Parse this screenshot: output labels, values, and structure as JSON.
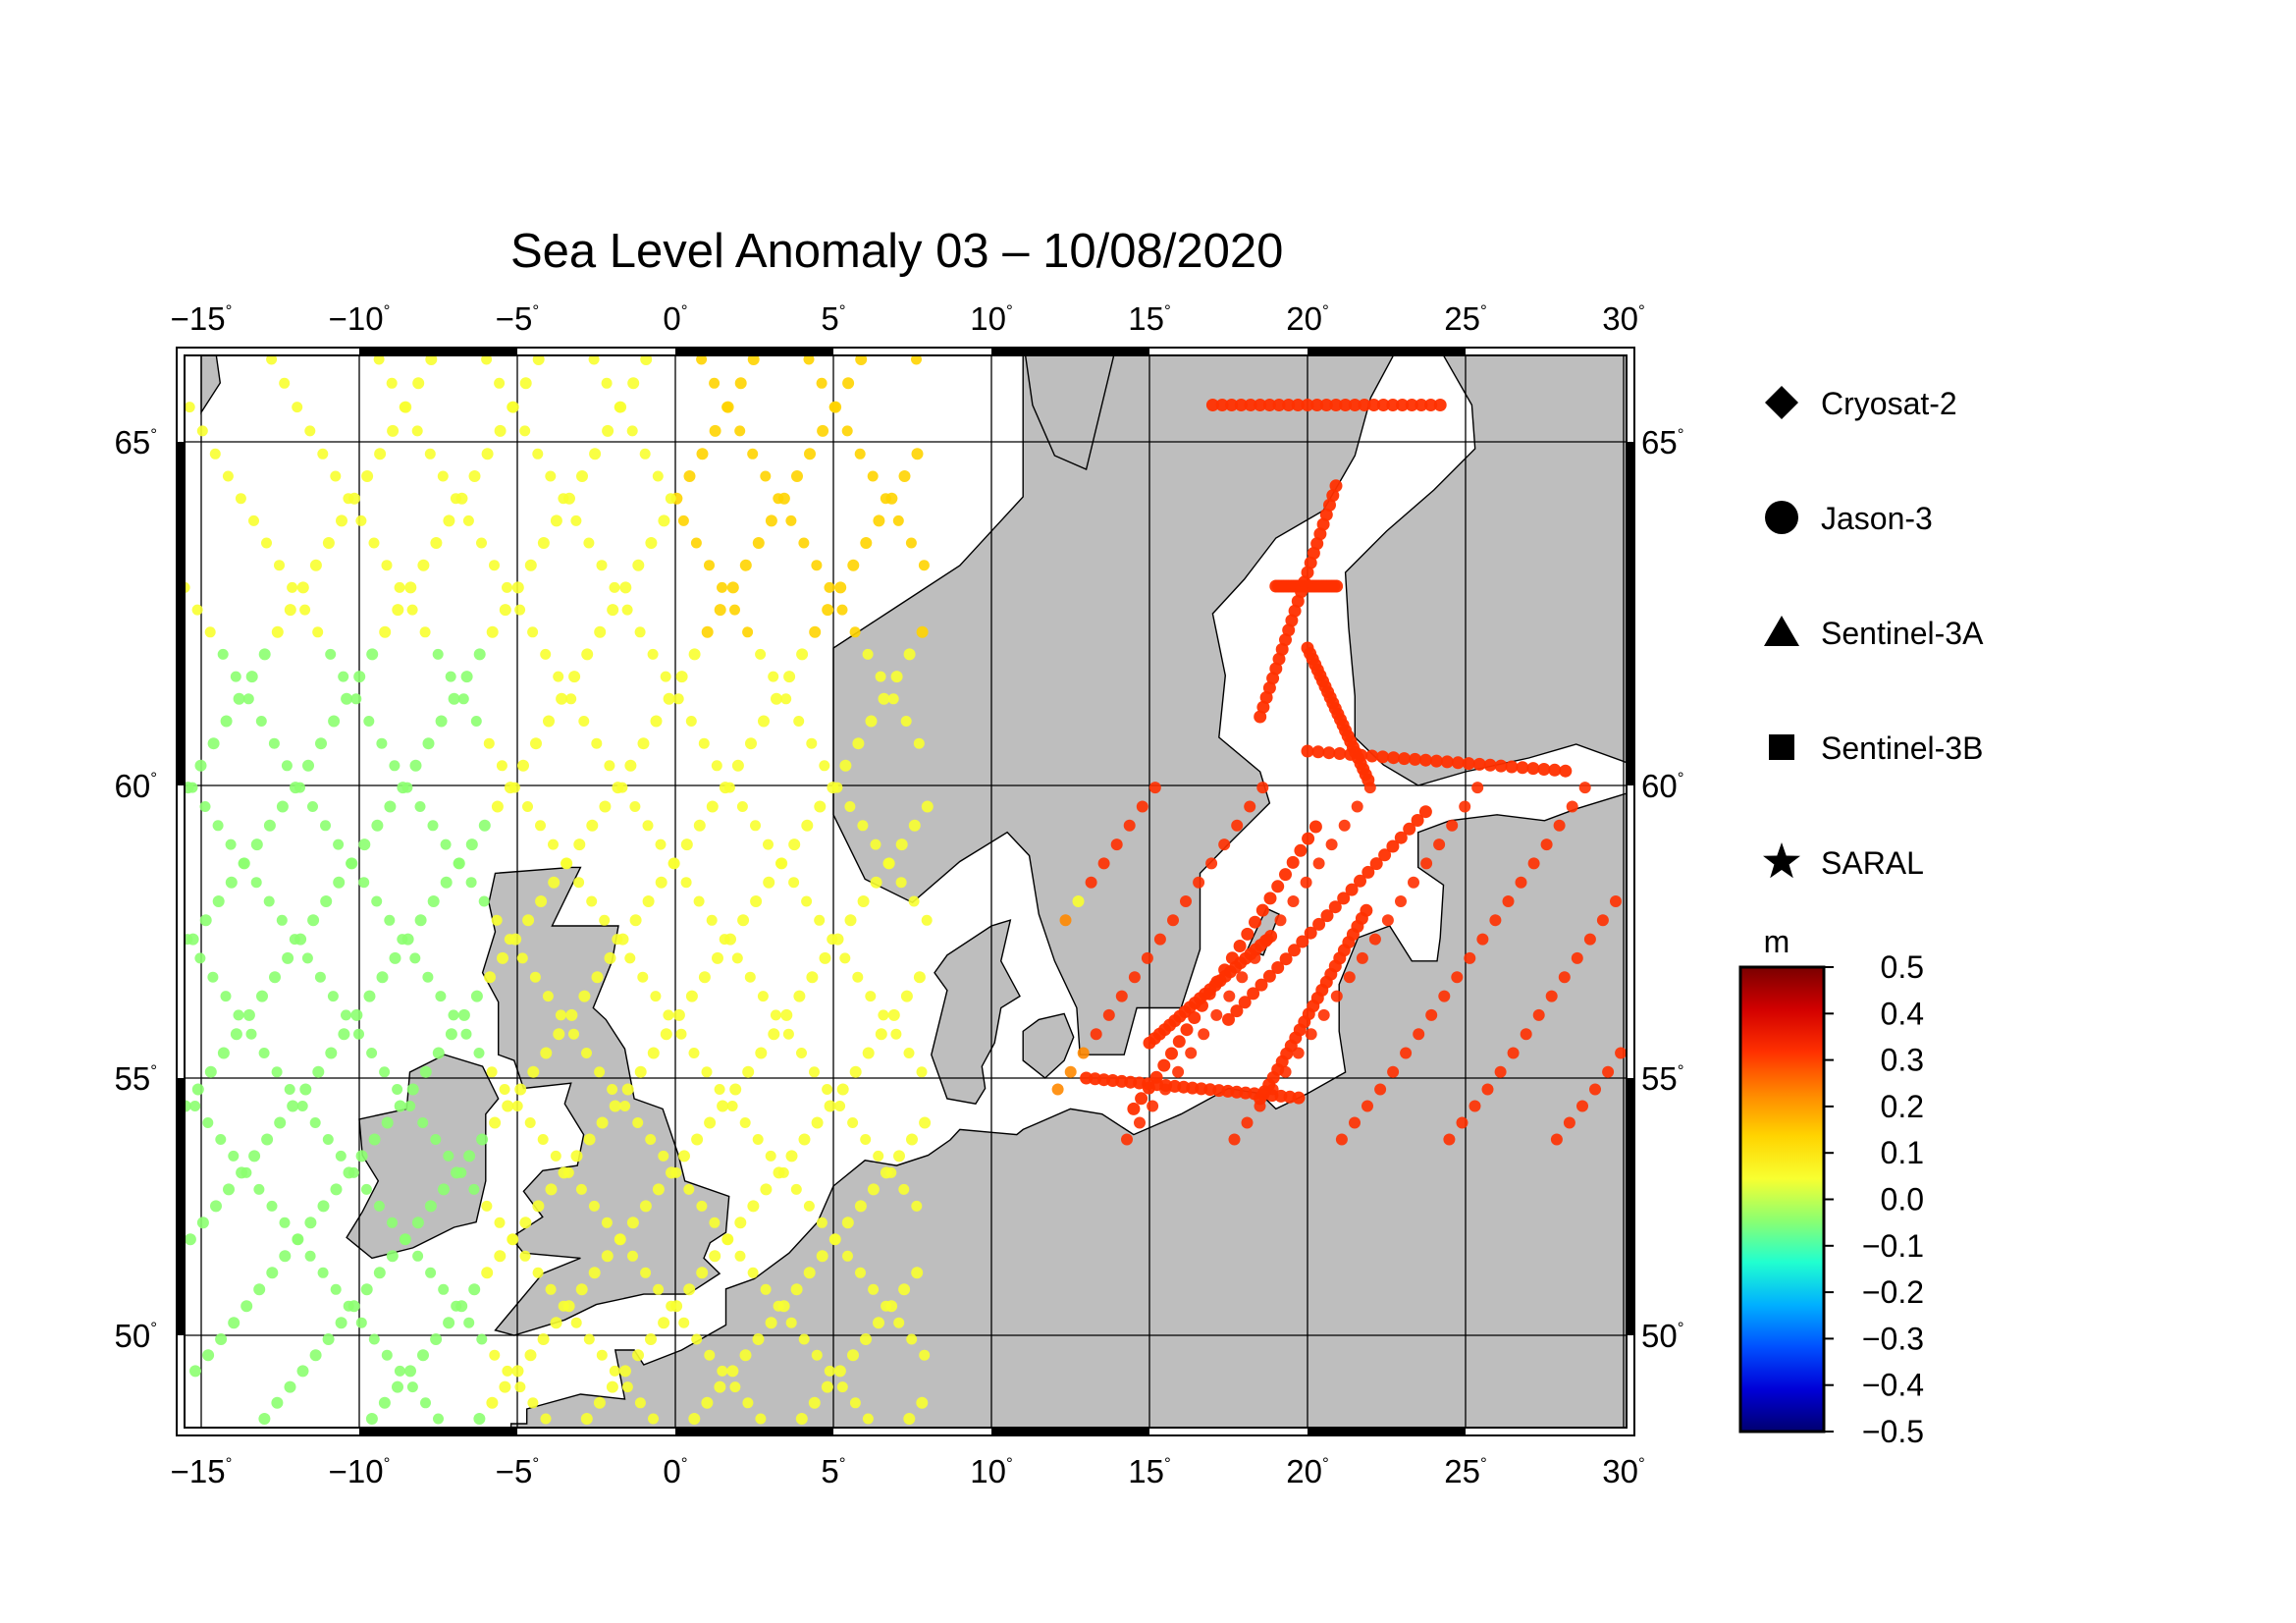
{
  "title": "Sea Level Anomaly 03 – 10/08/2020",
  "map": {
    "lon_ticks": [
      "−15",
      "−10",
      "−5",
      "0",
      "5",
      "10",
      "15",
      "20",
      "25",
      "30"
    ],
    "lat_ticks": [
      "65",
      "60",
      "55",
      "50"
    ],
    "degree_symbol": "°",
    "land_color": "#bebebe",
    "sea_color": "#ffffff"
  },
  "legend": {
    "satellites": [
      {
        "name": "Cryosat-2",
        "symbol": "diamond"
      },
      {
        "name": "Jason-3",
        "symbol": "circle"
      },
      {
        "name": "Sentinel-3A",
        "symbol": "triangle"
      },
      {
        "name": "Sentinel-3B",
        "symbol": "square"
      },
      {
        "name": "SARAL",
        "symbol": "star"
      }
    ]
  },
  "colorbar": {
    "unit": "m",
    "ticks": [
      "0.5",
      "0.4",
      "0.3",
      "0.2",
      "0.1",
      "0.0",
      "−0.1",
      "−0.2",
      "−0.3",
      "−0.4",
      "−0.5"
    ],
    "colors": [
      "#7a0000",
      "#d20000",
      "#ff3000",
      "#ff8800",
      "#ffd400",
      "#f8ff30",
      "#8cff70",
      "#20ffd0",
      "#00b0ff",
      "#0050ff",
      "#0000d8",
      "#000070"
    ]
  }
}
